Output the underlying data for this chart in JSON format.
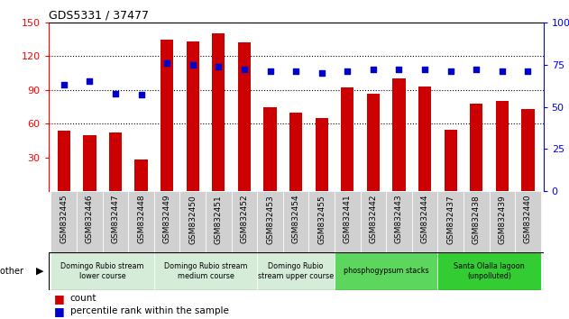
{
  "title": "GDS5331 / 37477",
  "categories": [
    "GSM832445",
    "GSM832446",
    "GSM832447",
    "GSM832448",
    "GSM832449",
    "GSM832450",
    "GSM832451",
    "GSM832452",
    "GSM832453",
    "GSM832454",
    "GSM832455",
    "GSM832441",
    "GSM832442",
    "GSM832443",
    "GSM832444",
    "GSM832437",
    "GSM832438",
    "GSM832439",
    "GSM832440"
  ],
  "counts": [
    54,
    50,
    52,
    28,
    135,
    133,
    140,
    132,
    75,
    70,
    65,
    92,
    87,
    100,
    93,
    55,
    78,
    80,
    73
  ],
  "percentiles": [
    63,
    65,
    58,
    57,
    76,
    75,
    74,
    72,
    71,
    71,
    70,
    71,
    72,
    72,
    72,
    71,
    72,
    71,
    71
  ],
  "groups": [
    {
      "label": "Domingo Rubio stream\nlower course",
      "start": 0,
      "end": 4,
      "color": "#d5ecd8"
    },
    {
      "label": "Domingo Rubio stream\nmedium course",
      "start": 4,
      "end": 8,
      "color": "#d5ecd8"
    },
    {
      "label": "Domingo Rubio\nstream upper course",
      "start": 8,
      "end": 11,
      "color": "#d5ecd8"
    },
    {
      "label": "phosphogypsum stacks",
      "start": 11,
      "end": 15,
      "color": "#5cd65c"
    },
    {
      "label": "Santa Olalla lagoon\n(unpolluted)",
      "start": 15,
      "end": 19,
      "color": "#33cc33"
    }
  ],
  "bar_color": "#cc0000",
  "dot_color": "#0000cc",
  "left_ylim": [
    0,
    150
  ],
  "right_ylim": [
    0,
    100
  ],
  "left_yticks": [
    30,
    60,
    90,
    120,
    150
  ],
  "right_yticks": [
    0,
    25,
    50,
    75,
    100
  ],
  "right_ytick_labels": [
    "0",
    "25",
    "50",
    "75",
    "100%"
  ],
  "grid_values": [
    60,
    90,
    120
  ],
  "bg_color": "#ffffff",
  "xtick_bg_color": "#d0d0d0",
  "bar_width": 0.5
}
